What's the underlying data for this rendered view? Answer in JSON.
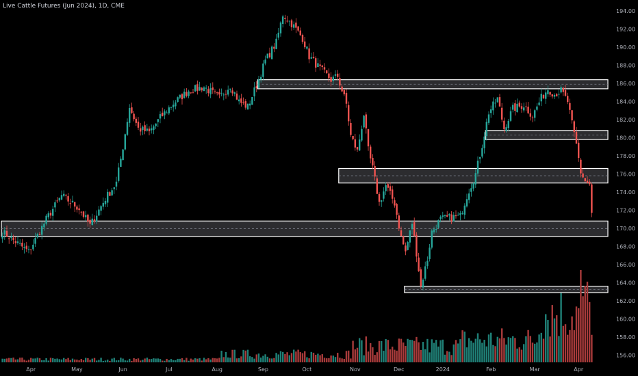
{
  "chart_title": "Live Cattle Futures (Jun 2024), 1D, CME",
  "colors": {
    "background": "#000000",
    "up": "#26a69a",
    "down": "#ef5350",
    "volume_up": "#1f7f76",
    "volume_down": "#a63a3a",
    "zone_fill": "#3b3b3f",
    "zone_border": "#ffffff",
    "zone_midline": "#787b86",
    "axis_text": "#b2b5be"
  },
  "chart_data": {
    "type": "candlestick",
    "symbol": "Live Cattle Futures (Jun 2024)",
    "interval": "1D",
    "exchange": "CME",
    "ylim": [
      155.2,
      194.6
    ],
    "y_ticks": [
      156,
      158,
      160,
      162,
      164,
      166,
      168,
      170,
      172,
      174,
      176,
      178,
      180,
      182,
      184,
      186,
      188,
      190,
      192,
      194
    ],
    "y_tick_labels": [
      "156.00",
      "158.00",
      "160.00",
      "162.00",
      "164.00",
      "166.00",
      "168.00",
      "170.00",
      "172.00",
      "174.00",
      "176.00",
      "178.00",
      "180.00",
      "182.00",
      "184.00",
      "186.00",
      "188.00",
      "190.00",
      "192.00",
      "194.00"
    ],
    "x_tick_labels": [
      "Apr",
      "May",
      "Jun",
      "Jul",
      "Aug",
      "Sep",
      "Oct",
      "Nov",
      "Dec",
      "2024",
      "Feb",
      "Mar",
      "Apr"
    ],
    "x_tick_bar_index": [
      13,
      34,
      55,
      76,
      98,
      119,
      139,
      161,
      181,
      201,
      223,
      243,
      263
    ],
    "bar_count": 270,
    "price_path_anchors": [
      [
        0,
        169.6
      ],
      [
        12,
        167.4
      ],
      [
        20,
        171.0
      ],
      [
        27,
        173.6
      ],
      [
        35,
        172.2
      ],
      [
        40,
        170.3
      ],
      [
        47,
        173.3
      ],
      [
        52,
        175.0
      ],
      [
        55,
        179.0
      ],
      [
        58,
        183.4
      ],
      [
        62,
        181.0
      ],
      [
        67,
        180.6
      ],
      [
        72,
        182.2
      ],
      [
        78,
        183.8
      ],
      [
        85,
        185.2
      ],
      [
        92,
        185.6
      ],
      [
        99,
        184.4
      ],
      [
        104,
        185.8
      ],
      [
        108,
        184.0
      ],
      [
        112,
        183.4
      ],
      [
        116,
        185.8
      ],
      [
        120,
        188.5
      ],
      [
        125,
        190.5
      ],
      [
        128,
        193.6
      ],
      [
        132,
        192.6
      ],
      [
        137,
        191.0
      ],
      [
        140,
        189.0
      ],
      [
        145,
        187.6
      ],
      [
        150,
        186.4
      ],
      [
        153,
        186.8
      ],
      [
        155,
        185.2
      ],
      [
        157,
        183.7
      ],
      [
        159,
        180.2
      ],
      [
        162,
        178.5
      ],
      [
        165,
        182.6
      ],
      [
        167,
        178.6
      ],
      [
        169,
        176.6
      ],
      [
        172,
        172.8
      ],
      [
        175,
        174.7
      ],
      [
        179,
        172.8
      ],
      [
        182,
        169.0
      ],
      [
        184,
        167.4
      ],
      [
        187,
        170.6
      ],
      [
        189,
        167.3
      ],
      [
        191,
        163.6
      ],
      [
        194,
        166.6
      ],
      [
        196,
        169.6
      ],
      [
        200,
        171.0
      ],
      [
        205,
        171.2
      ],
      [
        209,
        171.3
      ],
      [
        212,
        173.6
      ],
      [
        216,
        176.0
      ],
      [
        219,
        179.2
      ],
      [
        222,
        182.8
      ],
      [
        226,
        184.3
      ],
      [
        229,
        181.0
      ],
      [
        233,
        183.2
      ],
      [
        238,
        183.6
      ],
      [
        242,
        182.4
      ],
      [
        246,
        184.4
      ],
      [
        249,
        185.4
      ],
      [
        252,
        184.8
      ],
      [
        255,
        185.2
      ],
      [
        258,
        184.0
      ],
      [
        260,
        181.5
      ],
      [
        262,
        179.2
      ],
      [
        264,
        176.2
      ],
      [
        266,
        175.2
      ],
      [
        268,
        174.8
      ],
      [
        269,
        171.5
      ]
    ],
    "resistance_support_zones": [
      {
        "y_top": 186.4,
        "y_bottom": 185.4,
        "from_bar": 117
      },
      {
        "y_top": 180.8,
        "y_bottom": 179.8,
        "from_bar": 221
      },
      {
        "y_top": 176.6,
        "y_bottom": 175.0,
        "from_bar": 154
      },
      {
        "y_top": 170.8,
        "y_bottom": 169.1,
        "from_bar": 0
      },
      {
        "y_top": 163.6,
        "y_bottom": 162.9,
        "from_bar": 184
      }
    ],
    "volume_note": "Volume histogram rises toward the right, peaking near late March 2024."
  }
}
